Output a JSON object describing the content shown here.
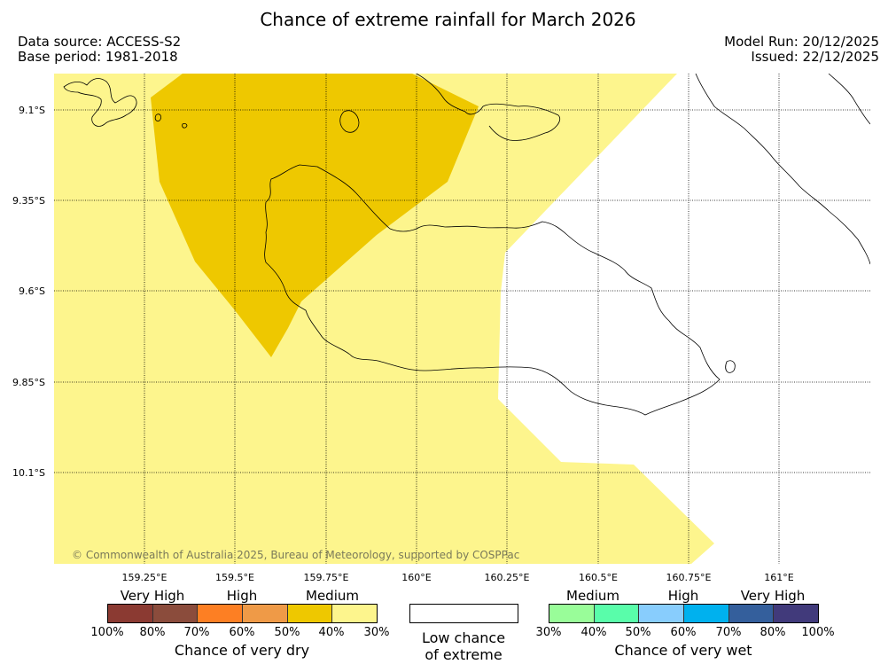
{
  "title": "Chance of extreme rainfall for March 2026",
  "data_source": "Data source: ACCESS-S2",
  "base_period": "Base period: 1981-2018",
  "model_run": "Model Run: 20/12/2025",
  "issued": "Issued: 22/12/2025",
  "copyright": "© Commonwealth of Australia 2025, Bureau of Meteorology, supported by COSPPac",
  "latitudes": [
    "9.1°S",
    "9.35°S",
    "9.6°S",
    "9.85°S",
    "10.1°S"
  ],
  "longitudes": [
    "159.25°E",
    "159.5°E",
    "159.75°E",
    "160°E",
    "160.25°E",
    "160.5°E",
    "160.75°E",
    "161°E"
  ],
  "colors": {
    "dry_30_40": "#fdf58d",
    "dry_40_50": "#eec800",
    "land_outline": "#000000",
    "gridline": "#000000"
  },
  "legend": {
    "dry": {
      "headings": [
        "Very High",
        "High",
        "Medium"
      ],
      "colors": [
        "#8b3a32",
        "#8b4c3c",
        "#fd7f23",
        "#ef9a47",
        "#eec800",
        "#fdf58d"
      ],
      "ticks": [
        "100%",
        "80%",
        "70%",
        "60%",
        "50%",
        "40%",
        "30%"
      ],
      "caption": "Chance of very dry"
    },
    "low": {
      "color": "#ffffff",
      "caption_line1": "Low chance",
      "caption_line2": "of extreme"
    },
    "wet": {
      "headings": [
        "Medium",
        "High",
        "Very High"
      ],
      "colors": [
        "#99fd99",
        "#59fdaa",
        "#88cdfd",
        "#00b1ee",
        "#345f9c",
        "#413a7b"
      ],
      "ticks": [
        "30%",
        "40%",
        "50%",
        "60%",
        "70%",
        "80%",
        "100%"
      ],
      "caption": "Chance of very wet"
    }
  }
}
